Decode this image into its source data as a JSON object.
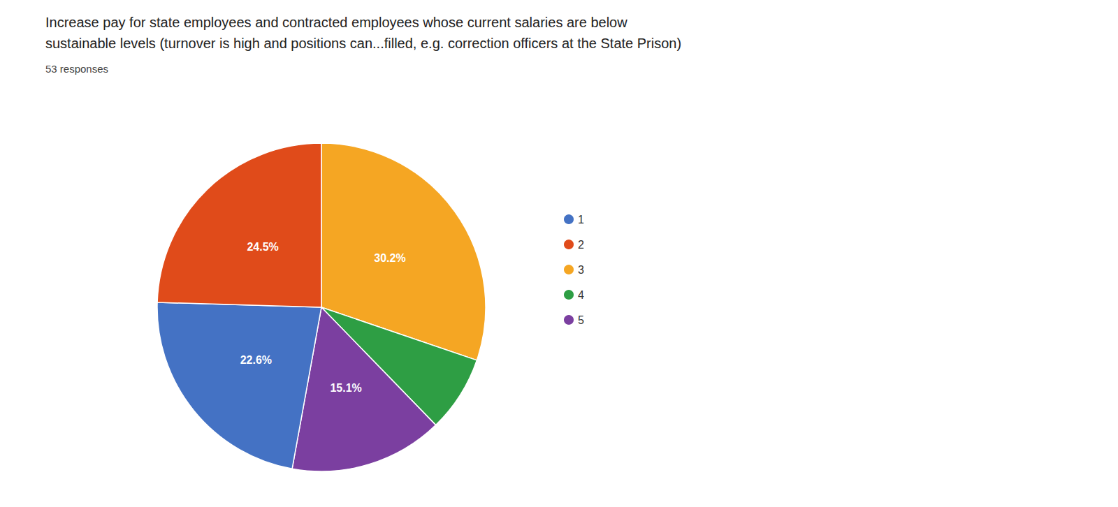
{
  "chart_data": {
    "type": "pie",
    "title": "Increase pay for state employees and contracted employees whose current salaries are below\nsustainable levels (turnover is high and positions can...filled, e.g. correction officers at the State Prison)",
    "subtitle": "53 responses",
    "categories": [
      "3",
      "4",
      "5",
      "1",
      "2"
    ],
    "values": [
      30.2,
      7.5,
      15.1,
      22.6,
      24.5
    ],
    "value_labels": [
      "30.2%",
      null,
      "15.1%",
      "22.6%",
      "24.5%"
    ],
    "colors": [
      "#F5A623",
      "#2E9E44",
      "#7B3FA0",
      "#4472C4",
      "#E04B1A"
    ],
    "data_labels": true,
    "legend": "right"
  }
}
